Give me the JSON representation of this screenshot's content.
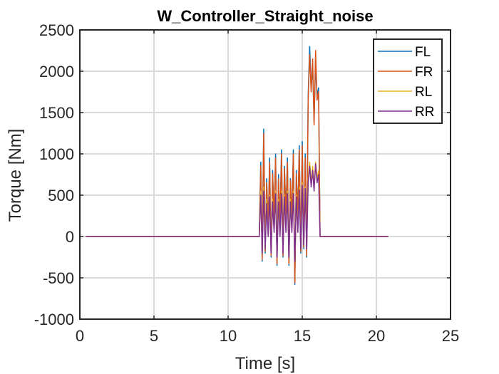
{
  "chart_data": {
    "type": "line",
    "title": "W_Controller_Straight_noise",
    "xlabel": "Time [s]",
    "ylabel": "Torque [Nm]",
    "xlim": [
      0,
      25
    ],
    "ylim": [
      -1000,
      2500
    ],
    "xticks": [
      0,
      5,
      10,
      15,
      20,
      25
    ],
    "yticks": [
      -1000,
      -500,
      0,
      500,
      1000,
      1500,
      2000,
      2500
    ],
    "xtick_labels": [
      "0",
      "5",
      "10",
      "15",
      "20",
      "25"
    ],
    "ytick_labels": [
      "-1000",
      "-500",
      "0",
      "500",
      "1000",
      "1500",
      "2000",
      "2500"
    ],
    "grid": true,
    "legend_position": "top-right",
    "series": [
      {
        "name": "FL",
        "color": "#0072BD",
        "x": [
          0.4,
          12.0,
          12.1,
          12.2,
          12.3,
          12.4,
          12.5,
          12.6,
          12.7,
          12.8,
          12.9,
          13.0,
          13.1,
          13.2,
          13.3,
          13.4,
          13.5,
          13.6,
          13.7,
          13.8,
          13.9,
          14.0,
          14.1,
          14.2,
          14.3,
          14.4,
          14.5,
          14.6,
          14.7,
          14.8,
          14.9,
          15.0,
          15.1,
          15.2,
          15.3,
          15.4,
          15.5,
          15.6,
          15.7,
          15.8,
          15.9,
          16.0,
          16.1,
          16.2,
          20.8
        ],
        "y": [
          0,
          0,
          0,
          900,
          -300,
          1300,
          -200,
          700,
          100,
          950,
          -250,
          800,
          200,
          1000,
          -350,
          750,
          150,
          1050,
          -250,
          850,
          300,
          950,
          -350,
          700,
          200,
          1050,
          -580,
          800,
          250,
          1100,
          -200,
          1150,
          -150,
          1000,
          -250,
          1700,
          2300,
          1800,
          2050,
          1400,
          2100,
          1700,
          1800,
          0,
          0
        ]
      },
      {
        "name": "FR",
        "color": "#D95319",
        "x": [
          0.4,
          12.0,
          12.1,
          12.2,
          12.3,
          12.4,
          12.5,
          12.6,
          12.7,
          12.8,
          12.9,
          13.0,
          13.1,
          13.2,
          13.3,
          13.4,
          13.5,
          13.6,
          13.7,
          13.8,
          13.9,
          14.0,
          14.1,
          14.2,
          14.3,
          14.4,
          14.5,
          14.6,
          14.7,
          14.8,
          14.9,
          15.0,
          15.1,
          15.2,
          15.3,
          15.4,
          15.5,
          15.6,
          15.7,
          15.8,
          15.9,
          16.0,
          16.1,
          16.2,
          20.8
        ],
        "y": [
          0,
          0,
          0,
          850,
          -280,
          1250,
          -180,
          650,
          120,
          900,
          -230,
          760,
          220,
          950,
          -330,
          700,
          170,
          1000,
          -230,
          820,
          280,
          900,
          -330,
          680,
          220,
          1000,
          -560,
          760,
          270,
          1050,
          -180,
          1100,
          -130,
          950,
          -230,
          1650,
          2200,
          1750,
          2150,
          1350,
          2250,
          1650,
          1750,
          0,
          0
        ]
      },
      {
        "name": "RL",
        "color": "#EDB120",
        "x": [
          0.4,
          12.0,
          12.1,
          12.2,
          12.3,
          12.4,
          12.5,
          12.6,
          12.7,
          12.8,
          12.9,
          13.0,
          13.1,
          13.2,
          13.3,
          13.4,
          13.5,
          13.6,
          13.7,
          13.8,
          13.9,
          14.0,
          14.1,
          14.2,
          14.3,
          14.4,
          14.5,
          14.6,
          14.7,
          14.8,
          14.9,
          15.0,
          15.1,
          15.2,
          15.3,
          15.4,
          15.5,
          15.6,
          15.7,
          15.8,
          15.9,
          16.0,
          16.1,
          16.2,
          20.8
        ],
        "y": [
          0,
          0,
          0,
          550,
          -150,
          600,
          -100,
          450,
          50,
          500,
          -150,
          450,
          100,
          550,
          -200,
          450,
          50,
          550,
          -150,
          500,
          100,
          550,
          -200,
          450,
          100,
          550,
          -250,
          500,
          100,
          600,
          -100,
          650,
          -50,
          600,
          -100,
          700,
          900,
          650,
          850,
          600,
          900,
          700,
          800,
          0,
          0
        ]
      },
      {
        "name": "RR",
        "color": "#7E2F8E",
        "x": [
          0.4,
          12.0,
          12.1,
          12.2,
          12.3,
          12.4,
          12.5,
          12.6,
          12.7,
          12.8,
          12.9,
          13.0,
          13.1,
          13.2,
          13.3,
          13.4,
          13.5,
          13.6,
          13.7,
          13.8,
          13.9,
          14.0,
          14.1,
          14.2,
          14.3,
          14.4,
          14.5,
          14.6,
          14.7,
          14.8,
          14.9,
          15.0,
          15.1,
          15.2,
          15.3,
          15.4,
          15.5,
          15.6,
          15.7,
          15.8,
          15.9,
          16.0,
          16.1,
          16.2,
          20.8
        ],
        "y": [
          0,
          0,
          0,
          500,
          -200,
          550,
          -150,
          400,
          0,
          480,
          -200,
          420,
          50,
          520,
          -250,
          420,
          0,
          520,
          -200,
          480,
          50,
          520,
          -250,
          420,
          50,
          520,
          -300,
          480,
          50,
          560,
          -150,
          620,
          -100,
          580,
          -150,
          650,
          850,
          600,
          800,
          550,
          880,
          650,
          750,
          0,
          0
        ]
      }
    ]
  }
}
